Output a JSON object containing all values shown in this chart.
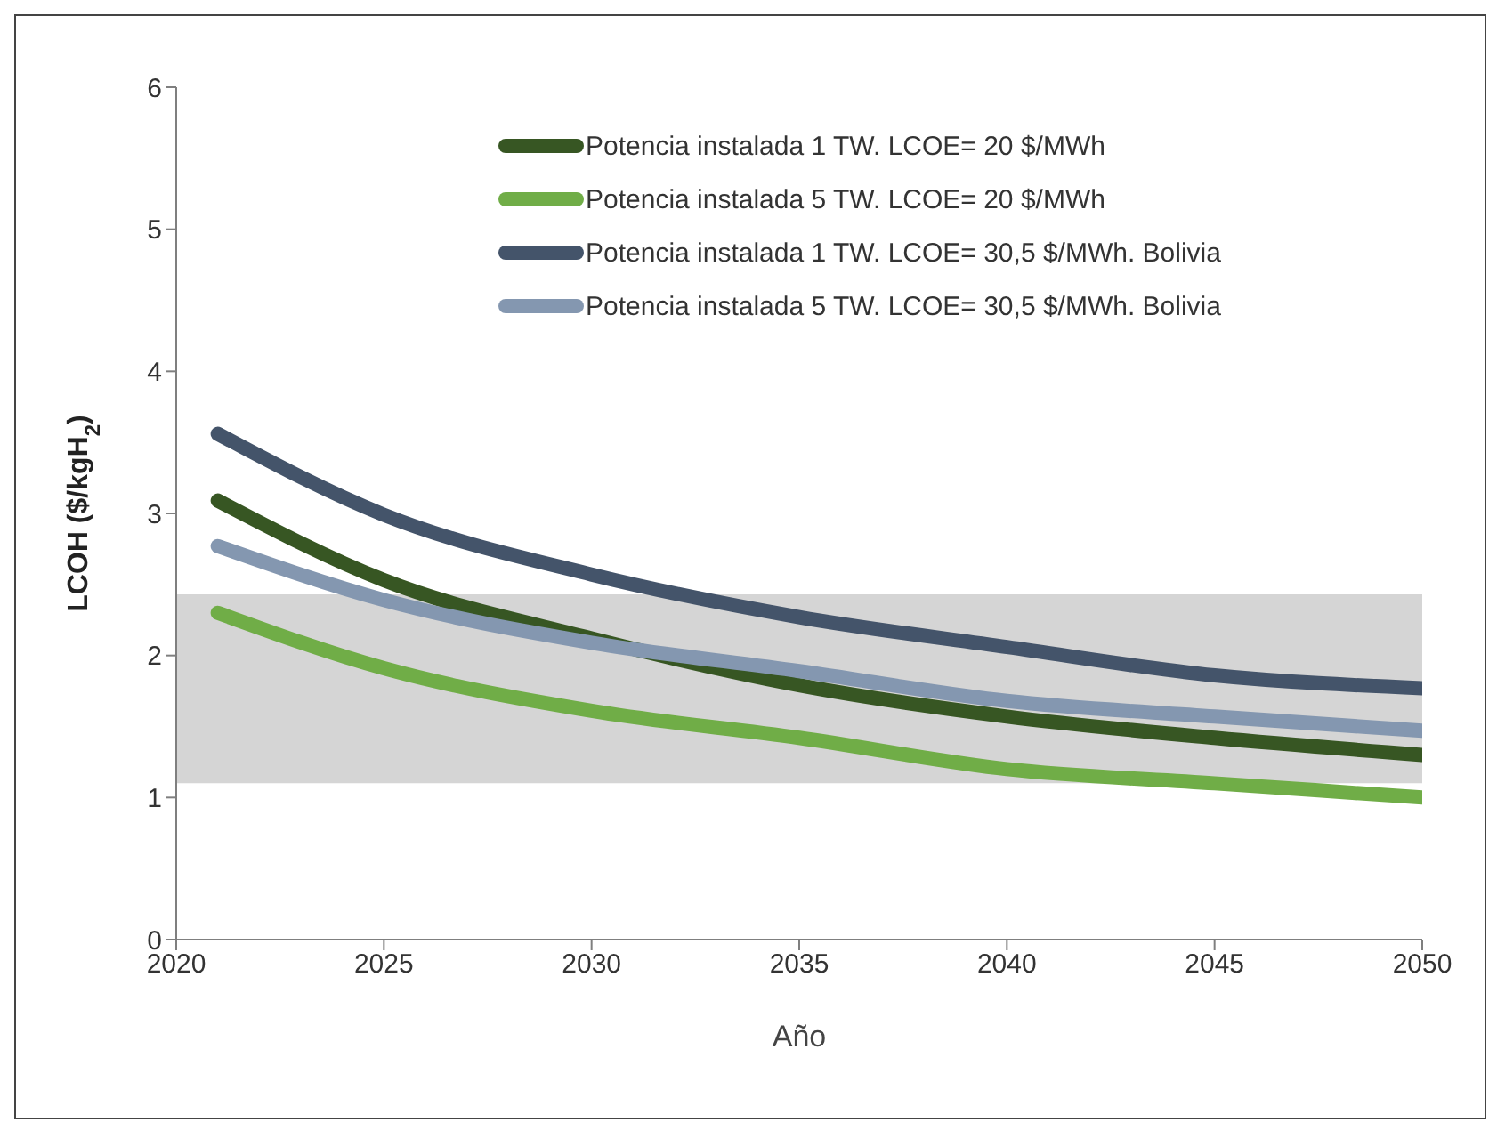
{
  "chart_data": {
    "type": "line",
    "xlabel": "Año",
    "ylabel": "LCOH ($/kgH$_{2}$)",
    "x": [
      2021,
      2025,
      2030,
      2035,
      2040,
      2045,
      2050
    ],
    "series": [
      {
        "name": "Potencia instalada 1 TW. LCOE= 20 $/MWh",
        "color": "#375623",
        "values": [
          3.09,
          2.53,
          2.12,
          1.79,
          1.57,
          1.42,
          1.3
        ]
      },
      {
        "name": "Potencia instalada 5 TW. LCOE= 20 $/MWh",
        "color": "#70ad47",
        "values": [
          2.3,
          1.91,
          1.61,
          1.42,
          1.2,
          1.1,
          1.0
        ]
      },
      {
        "name": "Potencia instalada 1 TW. LCOE= 30,5 $/MWh. Bolivia",
        "color": "#44546a",
        "values": [
          3.56,
          2.99,
          2.57,
          2.27,
          2.06,
          1.86,
          1.77
        ]
      },
      {
        "name": "Potencia instalada 5 TW. LCOE= 30,5 $/MWh. Bolivia",
        "color": "#8497b0",
        "values": [
          2.77,
          2.39,
          2.09,
          1.89,
          1.68,
          1.57,
          1.47
        ]
      }
    ],
    "bands": [
      {
        "axis": "y",
        "from": 1.1,
        "to": 2.43,
        "color": "#bfbfbf"
      }
    ],
    "xlim": [
      2020,
      2050
    ],
    "xticks": [
      2020,
      2025,
      2030,
      2035,
      2040,
      2045,
      2050
    ],
    "ylim": [
      0,
      6
    ],
    "yticks": [
      0,
      1,
      2,
      3,
      4,
      5,
      6
    ],
    "grid": false,
    "legend": "top",
    "marker": "none",
    "line_style": "solid"
  }
}
